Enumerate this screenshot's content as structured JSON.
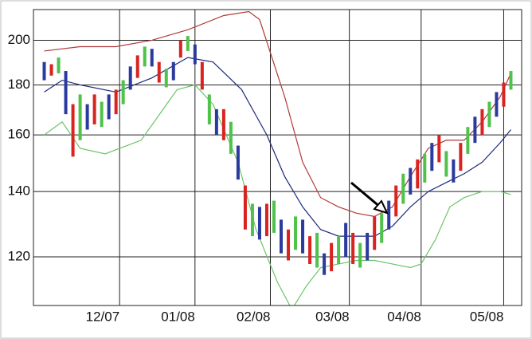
{
  "chart_data": {
    "type": "range_bar",
    "log_scale": true,
    "grid": true,
    "xlim": [
      0,
      136
    ],
    "ylim": [
      107,
      215
    ],
    "yticks": [
      120,
      140,
      160,
      180,
      200
    ],
    "xticks": [
      {
        "value": 24,
        "label": "12/07"
      },
      {
        "value": 45,
        "label": "01/08"
      },
      {
        "value": 66,
        "label": "02/08"
      },
      {
        "value": 88,
        "label": "03/08"
      },
      {
        "value": 108,
        "label": "04/08"
      },
      {
        "value": 131,
        "label": "05/08"
      }
    ],
    "series": [
      {
        "color": "#2a3a9e",
        "x": [
          3,
          9,
          15,
          21,
          27,
          33,
          39,
          45,
          51,
          57,
          63,
          69,
          75,
          81,
          87,
          93,
          99,
          105,
          111,
          117,
          123,
          129
        ],
        "low": [
          182,
          168,
          162,
          166,
          178,
          188,
          182,
          189,
          160,
          144,
          125,
          121,
          121,
          115,
          120,
          119,
          128,
          139,
          147,
          143,
          157,
          167
        ],
        "high": [
          190,
          186,
          172,
          176,
          188,
          196,
          190,
          198,
          170,
          156,
          135,
          131,
          131,
          121,
          130,
          127,
          137,
          148,
          157,
          151,
          167,
          177
        ]
      },
      {
        "color": "#d9231f",
        "x": [
          5,
          11,
          17,
          23,
          29,
          35,
          41,
          47,
          53,
          59,
          65,
          71,
          77,
          83,
          89,
          95,
          101,
          107,
          113,
          119,
          125,
          131
        ],
        "low": [
          184,
          152,
          164,
          168,
          183,
          181,
          192,
          178,
          158,
          128,
          126,
          119,
          118,
          116,
          118,
          122,
          132,
          141,
          150,
          147,
          160,
          171
        ],
        "high": [
          189,
          172,
          176,
          178,
          193,
          190,
          200,
          190,
          170,
          142,
          136,
          128,
          126,
          124,
          127,
          132,
          142,
          151,
          160,
          157,
          170,
          181
        ]
      },
      {
        "color": "#4fc24a",
        "x": [
          7,
          13,
          19,
          25,
          31,
          37,
          43,
          49,
          55,
          61,
          67,
          73,
          79,
          85,
          91,
          97,
          103,
          109,
          115,
          121,
          127,
          133
        ],
        "low": [
          185,
          158,
          163,
          172,
          188,
          179,
          195,
          164,
          153,
          126,
          127,
          122,
          117,
          118,
          117,
          124,
          136,
          143,
          145,
          153,
          163,
          178
        ],
        "high": [
          192,
          176,
          173,
          182,
          197,
          187,
          202,
          176,
          165,
          136,
          137,
          132,
          127,
          126,
          124,
          133,
          146,
          153,
          154,
          163,
          173,
          186
        ]
      }
    ],
    "bands": [
      {
        "color": "#b03a3a",
        "x": [
          3,
          13,
          23,
          33,
          43,
          53,
          60,
          63,
          70,
          75,
          80,
          85,
          90,
          95,
          100,
          105,
          110,
          115,
          120,
          125,
          130,
          133
        ],
        "values": [
          195,
          197,
          197,
          200,
          205,
          212,
          214,
          210,
          175,
          150,
          138,
          135,
          133,
          132,
          135,
          145,
          155,
          158,
          158,
          165,
          175,
          185
        ]
      },
      {
        "color": "#1d2a7a",
        "x": [
          3,
          8,
          13,
          23,
          33,
          43,
          50,
          58,
          65,
          70,
          75,
          80,
          85,
          90,
          95,
          100,
          105,
          110,
          115,
          120,
          125,
          130,
          133
        ],
        "values": [
          177,
          182,
          180,
          177,
          183,
          192,
          190,
          178,
          160,
          145,
          135,
          128,
          126,
          126,
          126,
          129,
          135,
          140,
          143,
          146,
          150,
          157,
          162
        ]
      },
      {
        "color": "#6cc46a",
        "x": [
          3,
          8,
          13,
          20,
          30,
          40,
          45,
          50,
          57,
          62,
          68,
          72,
          76,
          80,
          85,
          90,
          95,
          100,
          105,
          108,
          112,
          116,
          120,
          125,
          130,
          133
        ],
        "values": [
          160,
          165,
          155,
          153,
          158,
          178,
          180,
          172,
          150,
          128,
          113,
          106,
          112,
          117,
          118,
          119,
          119,
          118,
          117,
          118,
          125,
          135,
          138,
          140,
          140,
          139
        ]
      }
    ]
  }
}
